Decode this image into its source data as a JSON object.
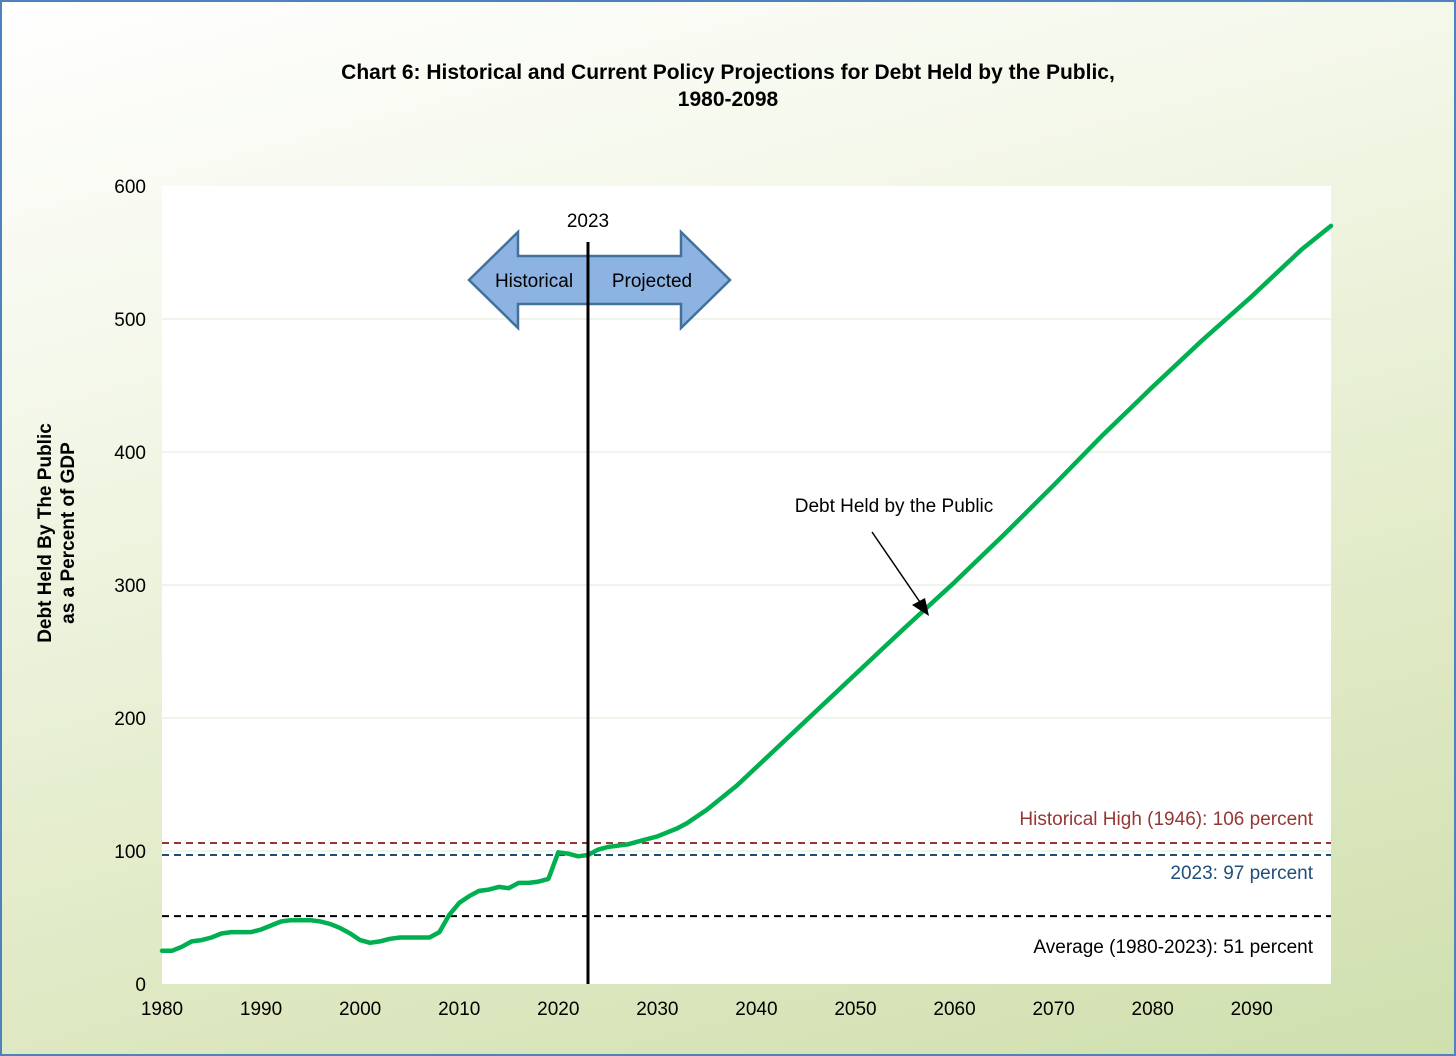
{
  "title_line1": "Chart 6:  Historical and Current Policy Projections for Debt Held by the Public,",
  "title_line2": "1980-2098",
  "chart_data": {
    "type": "line",
    "title": "Chart 6:  Historical and Current Policy Projections for Debt Held by the Public, 1980-2098",
    "ylabel_line1": "Debt Held By The Public",
    "ylabel_line2": "as a Percent of GDP",
    "xlabel": "",
    "xlim": [
      1980,
      2098
    ],
    "ylim": [
      0,
      600
    ],
    "x_ticks": [
      1980,
      1990,
      2000,
      2010,
      2020,
      2030,
      2040,
      2050,
      2060,
      2070,
      2080,
      2090
    ],
    "y_ticks": [
      0,
      100,
      200,
      300,
      400,
      500,
      600
    ],
    "grid": "horizontal",
    "line_color": "#00b050",
    "series": [
      {
        "name": "Debt Held by the Public",
        "x": [
          1980,
          1981,
          1982,
          1983,
          1984,
          1985,
          1986,
          1987,
          1988,
          1989,
          1990,
          1991,
          1992,
          1993,
          1994,
          1995,
          1996,
          1997,
          1998,
          1999,
          2000,
          2001,
          2002,
          2003,
          2004,
          2005,
          2006,
          2007,
          2008,
          2009,
          2010,
          2011,
          2012,
          2013,
          2014,
          2015,
          2016,
          2017,
          2018,
          2019,
          2020,
          2021,
          2022,
          2023,
          2024,
          2025,
          2026,
          2027,
          2028,
          2029,
          2030,
          2031,
          2032,
          2033,
          2034,
          2035,
          2036,
          2037,
          2038,
          2039,
          2040,
          2045,
          2050,
          2055,
          2060,
          2065,
          2070,
          2075,
          2080,
          2085,
          2090,
          2095,
          2098
        ],
        "values": [
          25,
          25,
          28,
          32,
          33,
          35,
          38,
          39,
          39,
          39,
          41,
          44,
          47,
          48,
          48,
          48,
          47,
          45,
          42,
          38,
          33,
          31,
          32,
          34,
          35,
          35,
          35,
          35,
          39,
          52,
          61,
          66,
          70,
          71,
          73,
          72,
          76,
          76,
          77,
          79,
          99,
          98,
          96,
          97,
          101,
          103,
          104,
          105,
          107,
          109,
          111,
          114,
          117,
          121,
          126,
          131,
          137,
          143,
          149,
          156,
          163,
          198,
          233,
          268,
          302,
          338,
          375,
          413,
          449,
          484,
          517,
          552,
          570
        ]
      }
    ],
    "reference_lines": [
      {
        "value": 106,
        "color": "#953735",
        "label": "Historical High (1946): 106 percent"
      },
      {
        "value": 97,
        "color": "#1f4e79",
        "label": "2023: 97 percent"
      },
      {
        "value": 51,
        "color": "#000000",
        "label": "Average (1980-2023): 51 percent"
      }
    ],
    "vertical_line": {
      "x": 2023,
      "label": "2023"
    },
    "arrow_labels": {
      "left": "Historical",
      "right": "Projected"
    },
    "annotation": "Debt Held by the Public"
  }
}
